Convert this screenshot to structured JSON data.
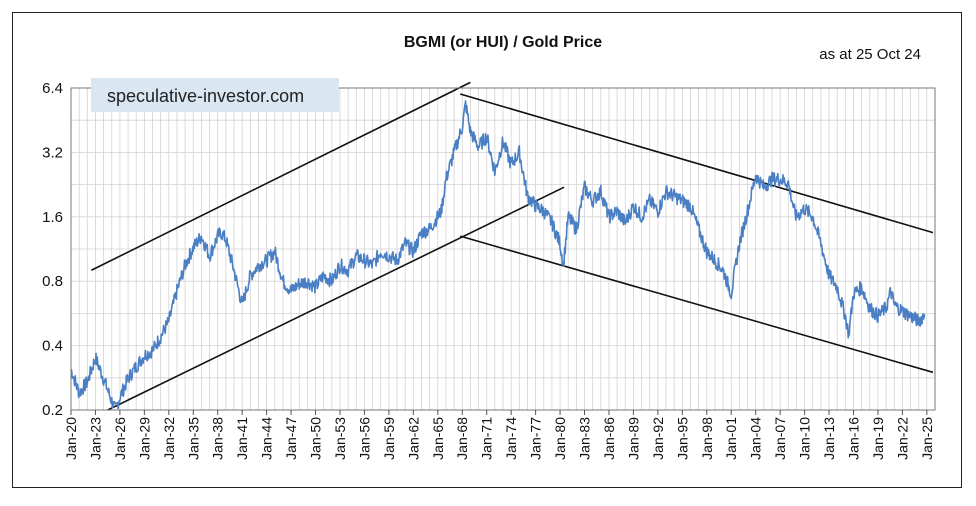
{
  "chart_data": {
    "type": "line",
    "title": "BGMI (or HUI) / Gold Price",
    "annotation": "as at 25 Oct 24",
    "watermark": "speculative-investor.com",
    "y_scale": "log2",
    "ylim": [
      0.2,
      6.4
    ],
    "y_ticks": [
      "6.4",
      "3.2",
      "1.6",
      "0.8",
      "0.4",
      "0.2"
    ],
    "x_ticks": [
      "Jan-20",
      "Jan-23",
      "Jan-26",
      "Jan-29",
      "Jan-32",
      "Jan-35",
      "Jan-38",
      "Jan-41",
      "Jan-44",
      "Jan-47",
      "Jan-50",
      "Jan-53",
      "Jan-56",
      "Jan-59",
      "Jan-62",
      "Jan-65",
      "Jan-68",
      "Jan-71",
      "Jan-74",
      "Jan-77",
      "Jan-80",
      "Jan-83",
      "Jan-86",
      "Jan-89",
      "Jan-92",
      "Jan-95",
      "Jan-98",
      "Jan-01",
      "Jan-04",
      "Jan-07",
      "Jan-10",
      "Jan-13",
      "Jan-16",
      "Jan-19",
      "Jan-22",
      "Jan-25"
    ],
    "grid": true,
    "line_color": "#4a7fc4",
    "series": [
      {
        "x": [
          "1920-01",
          "1921-01",
          "1922-01",
          "1923-01",
          "1924-01",
          "1925-01",
          "1925-06",
          "1926-01",
          "1927-01",
          "1928-01",
          "1929-01",
          "1930-01",
          "1931-01",
          "1932-01",
          "1933-01",
          "1934-01",
          "1935-01",
          "1936-01",
          "1937-01",
          "1938-01",
          "1938-06",
          "1939-01",
          "1940-01",
          "1941-01",
          "1942-01",
          "1943-01",
          "1944-01",
          "1945-01",
          "1946-01",
          "1947-01",
          "1948-01",
          "1949-01",
          "1950-01",
          "1951-01",
          "1952-01",
          "1953-01",
          "1954-01",
          "1955-01",
          "1956-01",
          "1957-01",
          "1958-01",
          "1959-01",
          "1960-01",
          "1961-01",
          "1962-01",
          "1963-01",
          "1964-01",
          "1965-01",
          "1965-06",
          "1966-01",
          "1967-01",
          "1968-01",
          "1968-06",
          "1969-01",
          "1970-01",
          "1971-01",
          "1972-01",
          "1973-01",
          "1974-01",
          "1975-01",
          "1976-01",
          "1977-01",
          "1978-01",
          "1979-01",
          "1980-01",
          "1980-06",
          "1981-01",
          "1982-01",
          "1983-01",
          "1984-01",
          "1985-01",
          "1986-01",
          "1987-01",
          "1988-01",
          "1989-01",
          "1990-01",
          "1991-01",
          "1992-01",
          "1993-01",
          "1994-01",
          "1995-01",
          "1996-01",
          "1997-01",
          "1998-01",
          "1999-01",
          "2000-01",
          "2001-01",
          "2002-01",
          "2003-01",
          "2004-01",
          "2005-01",
          "2006-01",
          "2007-01",
          "2008-01",
          "2008-10",
          "2009-01",
          "2010-01",
          "2011-01",
          "2012-01",
          "2013-01",
          "2014-01",
          "2015-01",
          "2015-06",
          "2016-01",
          "2017-01",
          "2018-01",
          "2019-01",
          "2020-01",
          "2020-08",
          "2021-01",
          "2022-01",
          "2023-01",
          "2024-01",
          "2024-10"
        ],
        "values": [
          0.31,
          0.24,
          0.27,
          0.35,
          0.28,
          0.22,
          0.2,
          0.23,
          0.28,
          0.32,
          0.36,
          0.38,
          0.44,
          0.52,
          0.72,
          0.95,
          1.15,
          1.3,
          1.05,
          1.3,
          1.35,
          1.25,
          0.9,
          0.62,
          0.85,
          0.95,
          1.0,
          1.1,
          0.8,
          0.72,
          0.78,
          0.8,
          0.75,
          0.85,
          0.8,
          0.95,
          0.9,
          1.05,
          1.0,
          0.95,
          1.1,
          1.05,
          1.0,
          1.2,
          1.1,
          1.35,
          1.4,
          1.6,
          1.7,
          2.4,
          3.2,
          4.2,
          5.4,
          4.0,
          3.4,
          3.8,
          2.6,
          3.6,
          2.8,
          3.2,
          2.0,
          1.8,
          1.7,
          1.5,
          1.2,
          0.95,
          1.6,
          1.4,
          2.2,
          1.9,
          2.1,
          1.6,
          1.7,
          1.5,
          1.8,
          1.6,
          1.9,
          1.7,
          2.1,
          2.0,
          1.9,
          1.8,
          1.4,
          1.1,
          1.0,
          0.9,
          0.7,
          1.2,
          1.7,
          2.5,
          2.2,
          2.4,
          2.4,
          2.3,
          1.7,
          1.6,
          1.75,
          1.6,
          1.2,
          0.85,
          0.75,
          0.55,
          0.45,
          0.7,
          0.75,
          0.6,
          0.55,
          0.6,
          0.72,
          0.62,
          0.58,
          0.55,
          0.52,
          0.56
        ]
      }
    ],
    "trendlines": [
      {
        "x1": "1922-07",
        "y1": 0.9,
        "x2": "1969-01",
        "y2": 6.8
      },
      {
        "x1": "1924-07",
        "y1": 0.2,
        "x2": "1980-07",
        "y2": 2.2
      },
      {
        "x1": "1967-10",
        "y1": 6.0,
        "x2": "2025-10",
        "y2": 1.35
      },
      {
        "x1": "1967-10",
        "y1": 1.3,
        "x2": "2025-10",
        "y2": 0.3
      }
    ]
  }
}
